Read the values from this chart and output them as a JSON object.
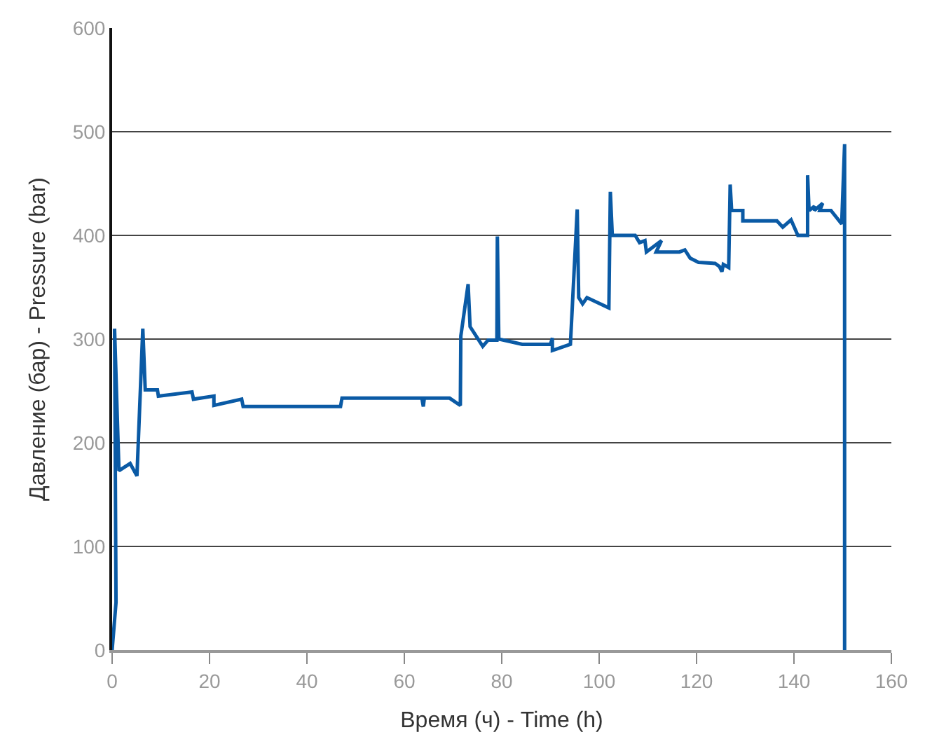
{
  "chart_data": {
    "type": "line",
    "xlabel": "Время (ч) - Time (h)",
    "ylabel": "Давление (бар) - Pressure (bar)",
    "x": [
      0,
      0.8,
      0.5,
      1.4,
      3.7,
      5.1,
      6.3,
      6.8,
      9.3,
      9.5,
      16.4,
      16.7,
      20.9,
      20.9,
      26.6,
      26.9,
      46.9,
      47.2,
      63.6,
      63.9,
      64.1,
      69.3,
      71.5,
      71.6,
      73.1,
      73.5,
      76.1,
      77.2,
      79,
      79.1,
      79.4,
      84.2,
      90,
      90.4,
      90.4,
      94.1,
      95.5,
      95.8,
      96.6,
      97.5,
      102,
      102.3,
      102.7,
      107.4,
      108.3,
      109.4,
      109.7,
      112.8,
      111.7,
      116.5,
      117.6,
      118.7,
      120.4,
      123.8,
      124.7,
      125.2,
      125.5,
      126.6,
      126.9,
      127.2,
      129.5,
      129.5,
      136.5,
      137.7,
      139.4,
      140.8,
      142.8,
      142.8,
      143.1,
      144.2,
      144.2,
      145.9,
      145.3,
      147.6,
      149.8,
      150.4,
      150.4
    ],
    "values": [
      0,
      46,
      310,
      173,
      180,
      168,
      310,
      251,
      251,
      245,
      249,
      242,
      245,
      236,
      242,
      235,
      235,
      243,
      243,
      235,
      243,
      243,
      236,
      303,
      353,
      312,
      293,
      299,
      299,
      399,
      300,
      295,
      295,
      301,
      289,
      295,
      425,
      340,
      334,
      340,
      330,
      442,
      400,
      400,
      393,
      395,
      384,
      395,
      384,
      384,
      386,
      378,
      374,
      373,
      370,
      365,
      372,
      369,
      449,
      424,
      424,
      414,
      414,
      408,
      415,
      400,
      400,
      458,
      424,
      428,
      424,
      431,
      424,
      424,
      411,
      488,
      0
    ],
    "color": "#0a5aa5",
    "xlim": [
      0,
      160
    ],
    "xticks": [
      0,
      20,
      40,
      60,
      80,
      100,
      120,
      140,
      160
    ],
    "ylim": [
      0,
      600
    ],
    "yticks": [
      0,
      100,
      200,
      300,
      400,
      500,
      600
    ],
    "grid": "y",
    "marker": "none",
    "line_style": "solid",
    "legend": false
  }
}
